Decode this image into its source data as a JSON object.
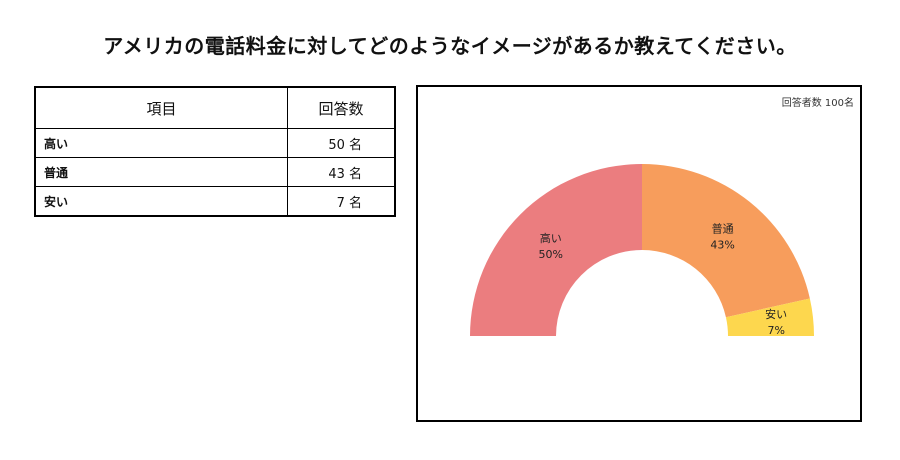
{
  "title": "アメリカの電話料金に対してどのようなイメージがあるか教えてください。",
  "table": {
    "headers": [
      "項目",
      "回答数"
    ],
    "rows": [
      {
        "item": "高い",
        "count": "50 名"
      },
      {
        "item": "普通",
        "count": "43 名"
      },
      {
        "item": "安い",
        "count": "7 名"
      }
    ]
  },
  "chart_data": {
    "type": "pie",
    "subtype": "half-donut",
    "respondents_note": "回答者数 100名",
    "slices": [
      {
        "label": "高い",
        "value": 50,
        "percent_label": "50%",
        "color": "#eb7d7f"
      },
      {
        "label": "普通",
        "value": 43,
        "percent_label": "43%",
        "color": "#f79d5c"
      },
      {
        "label": "安い",
        "value": 7,
        "percent_label": "7%",
        "color": "#fdd74e"
      }
    ]
  }
}
